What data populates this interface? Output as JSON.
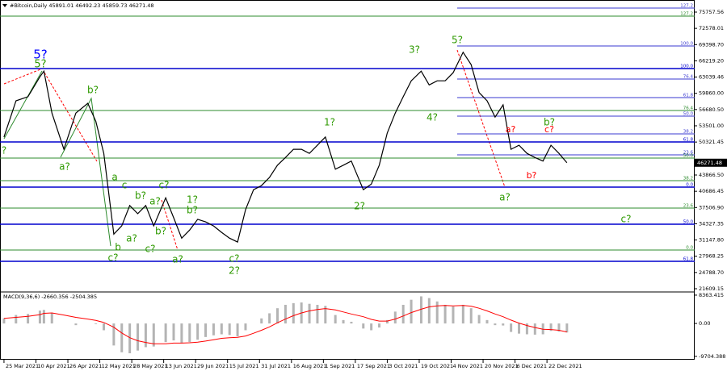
{
  "chart_data": [
    {
      "type": "line",
      "header": "#Bitcoin,Daily  45891.01 46492.23 45859.73 46271.48",
      "color": "#000000",
      "x": [
        "25 Mar 2021",
        "31 Mar 2021",
        "6 Apr 2021",
        "12 Apr 2021",
        "14 Apr 2021",
        "18 Apr 2021",
        "24 Apr 2021",
        "30 Apr 2021",
        "6 May 2021",
        "10 May 2021",
        "14 May 2021",
        "19 May 2021",
        "23 May 2021",
        "27 May 2021",
        "31 May 2021",
        "4 Jun 2021",
        "8 Jun 2021",
        "14 Jun 2021",
        "18 Jun 2021",
        "22 Jun 2021",
        "26 Jun 2021",
        "30 Jun 2021",
        "4 Jul 2021",
        "8 Jul 2021",
        "12 Jul 2021",
        "16 Jul 2021",
        "20 Jul 2021",
        "24 Jul 2021",
        "28 Jul 2021",
        "1 Aug 2021",
        "5 Aug 2021",
        "9 Aug 2021",
        "13 Aug 2021",
        "17 Aug 2021",
        "21 Aug 2021",
        "25 Aug 2021",
        "29 Aug 2021",
        "2 Sep 2021",
        "7 Sep 2021",
        "11 Sep 2021",
        "15 Sep 2021",
        "21 Sep 2021",
        "25 Sep 2021",
        "29 Sep 2021",
        "3 Oct 2021",
        "7 Oct 2021",
        "11 Oct 2021",
        "15 Oct 2021",
        "20 Oct 2021",
        "24 Oct 2021",
        "28 Oct 2021",
        "1 Nov 2021",
        "5 Nov 2021",
        "10 Nov 2021",
        "14 Nov 2021",
        "18 Nov 2021",
        "22 Nov 2021",
        "26 Nov 2021",
        "30 Nov 2021",
        "4 Dec 2021",
        "8 Dec 2021",
        "12 Dec 2021",
        "16 Dec 2021",
        "20 Dec 2021",
        "24 Dec 2021",
        "28 Dec 2021",
        "1 Jan 2022"
      ],
      "values": [
        51300,
        58400,
        59200,
        63100,
        64200,
        56000,
        48900,
        56000,
        57900,
        54400,
        48100,
        32300,
        33900,
        37900,
        36300,
        37900,
        33900,
        39400,
        35500,
        31500,
        33100,
        35200,
        34700,
        33900,
        32650,
        31500,
        30750,
        37100,
        41000,
        41800,
        43400,
        45800,
        47300,
        48900,
        48900,
        48100,
        49700,
        51300,
        45000,
        45800,
        46600,
        41000,
        42100,
        45800,
        52100,
        56000,
        59200,
        62300,
        64200,
        61500,
        62300,
        62300,
        63900,
        67900,
        65500,
        60000,
        58400,
        55200,
        57600,
        48900,
        49700,
        48100,
        47300,
        46600,
        49700,
        48100,
        46271.48
      ],
      "last_price": 46271.48,
      "xlim": [
        "23 Mar 2021",
        "6 Mar 2022"
      ],
      "xticks": [
        "25 Mar 2021",
        "10 Apr 2021",
        "26 Apr 2021",
        "12 May 2021",
        "28 May 2021",
        "13 Jun 2021",
        "29 Jun 2021",
        "15 Jul 2021",
        "31 Jul 2021",
        "16 Aug 2021",
        "1 Sep 2021",
        "17 Sep 2021",
        "3 Oct 2021",
        "19 Oct 2021",
        "4 Nov 2021",
        "20 Nov 2021",
        "6 Dec 2021",
        "22 Dec 2021"
      ],
      "ylim": [
        20977,
        78126
      ],
      "yticks": [
        75757.56,
        72578.01,
        {
          "value": 69398.7,
          "label": "69398.70"
        },
        {
          "value": 66219.2,
          "label": "66219.20"
        },
        63039.46,
        {
          "value": 59860,
          "label": "59860.00"
        },
        {
          "value": 56680.5,
          "label": "56680.50"
        },
        {
          "value": 53501,
          "label": "53501.00"
        },
        50321.45,
        {
          "value": 43866.5,
          "label": "43866.50"
        },
        40686.45,
        {
          "value": 37506.9,
          "label": "37506.90"
        },
        34327.35,
        {
          "value": 31147.8,
          "label": "31147.80"
        },
        27968.25,
        {
          "value": 24788.7,
          "label": "24788.70"
        },
        21609.15
      ],
      "levels": [
        {
          "value": 76547,
          "label": "127.2",
          "color": "#3a3ad0",
          "width": 1,
          "from": "7 Nov 2021"
        },
        {
          "value": 74969,
          "label": "127.2",
          "color": "#2e8b2e",
          "width": 1
        },
        {
          "value": 69127,
          "label": "100.0",
          "color": "#3a3ad0",
          "width": 1,
          "from": "7 Nov 2021"
        },
        {
          "value": 64707,
          "label": "100.0",
          "color": "#0000cd",
          "width": 1.6
        },
        {
          "value": 62655,
          "label": "76.4",
          "color": "#3a3ad0",
          "width": 1,
          "from": "7 Nov 2021"
        },
        {
          "value": 59024,
          "label": "61.8",
          "color": "#3a3ad0",
          "width": 1,
          "from": "7 Nov 2021"
        },
        {
          "value": 56498,
          "label": "76.4",
          "color": "#2e8b2e",
          "width": 1
        },
        {
          "value": 55393,
          "label": "50.0",
          "color": "#3a3ad0",
          "width": 1,
          "from": "7 Nov 2021"
        },
        {
          "value": 51920,
          "label": "38.2",
          "color": "#3a3ad0",
          "width": 1,
          "from": "7 Nov 2021"
        },
        {
          "value": 50341,
          "label": "61.8",
          "color": "#0000cd",
          "width": 1.6
        },
        {
          "value": 47815,
          "label": "23.6",
          "color": "#3a3ad0",
          "width": 1,
          "from": "7 Nov 2021"
        },
        {
          "value": 47184,
          "label": "50.0",
          "color": "#2e8b2e",
          "width": 1
        },
        {
          "value": 42763,
          "label": "38.2",
          "color": "#2e8b2e",
          "width": 1
        },
        {
          "value": 41500,
          "label": "0.0",
          "color": "#0000cd",
          "width": 1.6
        },
        {
          "value": 37396,
          "label": "23.6",
          "color": "#2e8b2e",
          "width": 1
        },
        {
          "value": 34238,
          "label": "50.0",
          "color": "#0000cd",
          "width": 1.6
        },
        {
          "value": 29186,
          "label": "0.0",
          "color": "#2e8b2e",
          "width": 1
        },
        {
          "value": 26976,
          "label": "61.8",
          "color": "#0000cd",
          "width": 1.6
        }
      ],
      "annotations": [
        {
          "text": "5?",
          "color": "#0000ff"
        },
        {
          "text": "5?",
          "color": "#2e9a00"
        },
        {
          "text": "?",
          "color": "#2e9a00"
        },
        {
          "text": "a?",
          "color": "#2e9a00"
        },
        {
          "text": "b?",
          "color": "#2e9a00"
        },
        {
          "text": "a",
          "color": "#2e9a00"
        },
        {
          "text": "c",
          "color": "#2e9a00"
        },
        {
          "text": "b?",
          "color": "#2e9a00"
        },
        {
          "text": "a?",
          "color": "#2e9a00"
        },
        {
          "text": "c?",
          "color": "#2e9a00"
        },
        {
          "text": "1?",
          "color": "#2e9a00"
        },
        {
          "text": "b?",
          "color": "#2e9a00"
        },
        {
          "text": "b",
          "color": "#2e9a00"
        },
        {
          "text": "a?",
          "color": "#2e9a00"
        },
        {
          "text": "c?",
          "color": "#2e9a00"
        },
        {
          "text": "c?",
          "color": "#2e9a00"
        },
        {
          "text": "b?",
          "color": "#2e9a00"
        },
        {
          "text": "a?",
          "color": "#2e9a00"
        },
        {
          "text": "c?",
          "color": "#2e9a00"
        },
        {
          "text": "2?",
          "color": "#2e9a00"
        },
        {
          "text": "1?",
          "color": "#2e9a00"
        },
        {
          "text": "2?",
          "color": "#2e9a00"
        },
        {
          "text": "3?",
          "color": "#2e9a00"
        },
        {
          "text": "4?",
          "color": "#2e9a00"
        },
        {
          "text": "5?",
          "color": "#2e9a00"
        },
        {
          "text": "b?",
          "color": "#2e9a00"
        },
        {
          "text": "a?",
          "color": "#2e9a00"
        },
        {
          "text": "c?",
          "color": "#2e9a00"
        },
        {
          "text": "a?",
          "color": "#ff0000"
        },
        {
          "text": "c?",
          "color": "#ff0000"
        },
        {
          "text": "b?",
          "color": "#ff0000"
        }
      ]
    },
    {
      "type": "bar",
      "header": "MACD(9,36,6) -2660.356 -2504.385",
      "color": "#b4b4b4",
      "signal_color": "#ff0000",
      "x": [
        "25 Mar 2021",
        "31 Mar 2021",
        "6 Apr 2021",
        "12 Apr 2021",
        "14 Apr 2021",
        "18 Apr 2021",
        "24 Apr 2021",
        "30 Apr 2021",
        "6 May 2021",
        "10 May 2021",
        "14 May 2021",
        "19 May 2021",
        "23 May 2021",
        "27 May 2021",
        "31 May 2021",
        "4 Jun 2021",
        "8 Jun 2021",
        "14 Jun 2021",
        "18 Jun 2021",
        "22 Jun 2021",
        "26 Jun 2021",
        "30 Jun 2021",
        "4 Jul 2021",
        "8 Jul 2021",
        "12 Jul 2021",
        "16 Jul 2021",
        "20 Jul 2021",
        "24 Jul 2021",
        "28 Jul 2021",
        "1 Aug 2021",
        "5 Aug 2021",
        "9 Aug 2021",
        "13 Aug 2021",
        "17 Aug 2021",
        "21 Aug 2021",
        "25 Aug 2021",
        "29 Aug 2021",
        "2 Sep 2021",
        "7 Sep 2021",
        "11 Sep 2021",
        "15 Sep 2021",
        "21 Sep 2021",
        "25 Sep 2021",
        "29 Sep 2021",
        "3 Oct 2021",
        "7 Oct 2021",
        "11 Oct 2021",
        "15 Oct 2021",
        "20 Oct 2021",
        "24 Oct 2021",
        "28 Oct 2021",
        "1 Nov 2021",
        "5 Nov 2021",
        "10 Nov 2021",
        "14 Nov 2021",
        "18 Nov 2021",
        "22 Nov 2021",
        "26 Nov 2021",
        "30 Nov 2021",
        "4 Dec 2021",
        "8 Dec 2021",
        "12 Dec 2021",
        "16 Dec 2021",
        "20 Dec 2021",
        "24 Dec 2021",
        "28 Dec 2021",
        "1 Jan 2022"
      ],
      "values": [
        1500,
        2500,
        2800,
        3800,
        4000,
        3000,
        0,
        -500,
        0,
        -200,
        -2000,
        -6500,
        -8500,
        -8800,
        -8000,
        -7000,
        -6800,
        -5500,
        -5000,
        -5800,
        -5500,
        -4800,
        -4000,
        -3500,
        -3200,
        -3400,
        -3800,
        -2000,
        0,
        1500,
        3000,
        4500,
        5500,
        6000,
        6200,
        5800,
        5500,
        5200,
        2500,
        1000,
        500,
        -1500,
        -2000,
        -1200,
        1000,
        3500,
        5500,
        7000,
        8000,
        7500,
        6500,
        5500,
        5000,
        5500,
        4500,
        2500,
        1000,
        -500,
        -600,
        -2500,
        -3000,
        -3200,
        -3300,
        -3200,
        -2200,
        -2400,
        -2660.356
      ],
      "signal_values": [
        1500,
        1800,
        2100,
        2600,
        3000,
        3100,
        2500,
        1800,
        1300,
        900,
        300,
        -1100,
        -2800,
        -4200,
        -5100,
        -5600,
        -6000,
        -6000,
        -5800,
        -5800,
        -5700,
        -5500,
        -5200,
        -4800,
        -4400,
        -4200,
        -4100,
        -3700,
        -2900,
        -2000,
        -1000,
        200,
        1300,
        2300,
        3100,
        3700,
        4100,
        4400,
        4000,
        3400,
        2800,
        2000,
        1200,
        700,
        700,
        1300,
        2200,
        3200,
        4200,
        4900,
        5200,
        5300,
        5200,
        5300,
        5100,
        4500,
        3700,
        2800,
        2000,
        1000,
        100,
        -600,
        -1200,
        -1700,
        -1800,
        -2000,
        -2504.385
      ],
      "xlim": [
        "23 Mar 2021",
        "6 Mar 2022"
      ],
      "ylim": [
        -10700,
        9300
      ],
      "yticks": [
        8363.415,
        {
          "value": 0,
          "label": "0.00"
        },
        -9704.388
      ]
    }
  ]
}
